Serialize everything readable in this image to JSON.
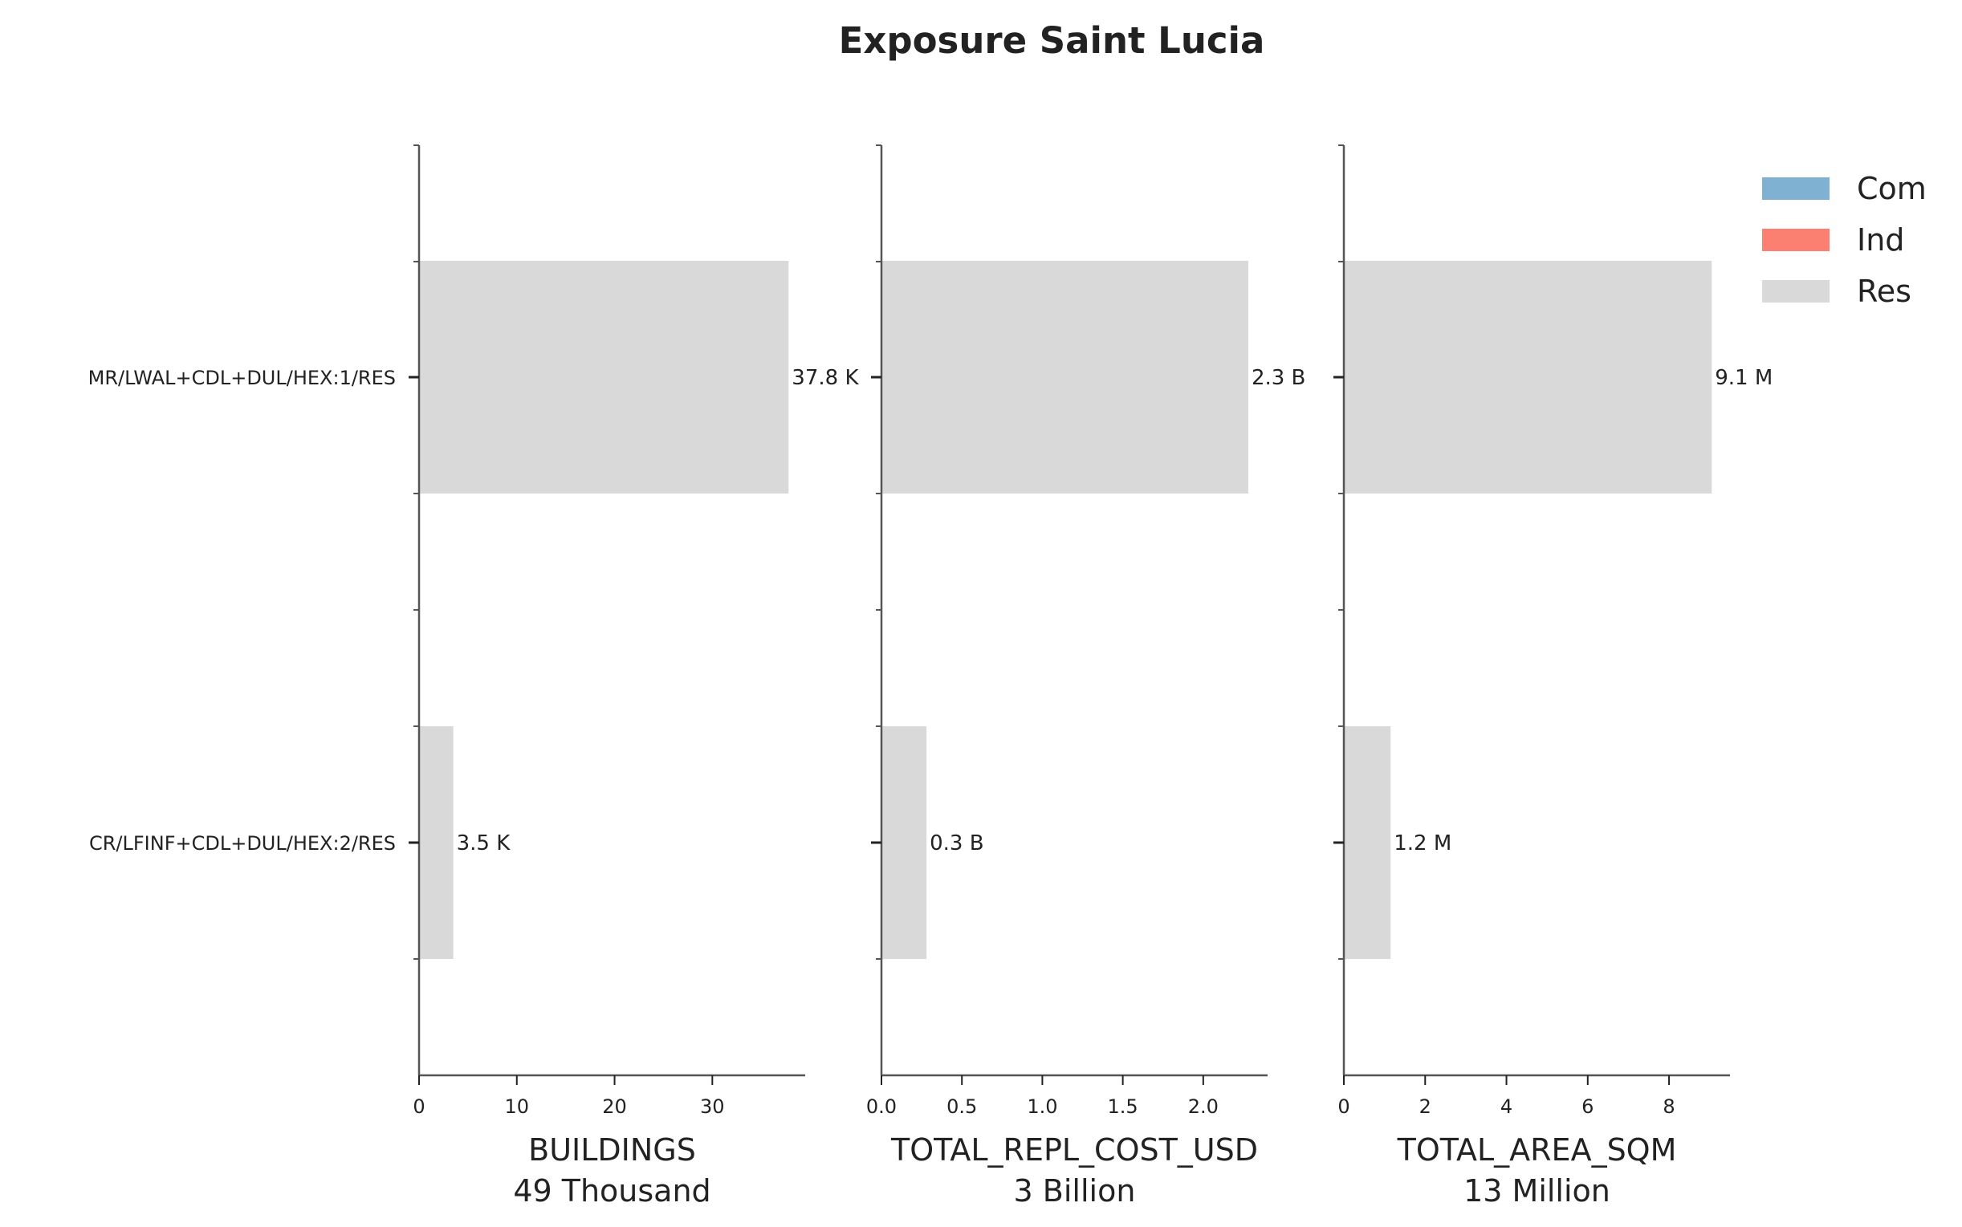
{
  "chart_data": {
    "type": "bar",
    "orientation": "horizontal",
    "title": "Exposure Saint Lucia",
    "categories": [
      "MR/LWAL+CDL+DUL/HEX:1/RES",
      "CR/LFINF+CDL+DUL/HEX:2/RES"
    ],
    "legend": {
      "placement": "top-right",
      "items": [
        {
          "label": "Com",
          "color": "#7fb1d3"
        },
        {
          "label": "Ind",
          "color": "#fb8072"
        },
        {
          "label": "Res",
          "color": "#d9d9d9"
        }
      ]
    },
    "bar_color": "#d9d9d9",
    "panels": [
      {
        "xlabel": "BUILDINGS",
        "total_label": "49 Thousand",
        "values": [
          37.8,
          3.5
        ],
        "value_labels": [
          "37.8 K",
          "3.5 K"
        ],
        "xlim": [
          0,
          39.5
        ],
        "ticks": [
          0,
          10,
          20,
          30
        ],
        "tick_labels": [
          "0",
          "10",
          "20",
          "30"
        ]
      },
      {
        "xlabel": "TOTAL_REPL_COST_USD",
        "total_label": "3 Billion",
        "values": [
          2.28,
          0.28
        ],
        "value_labels": [
          "2.3 B",
          "0.3 B"
        ],
        "xlim": [
          0,
          2.4
        ],
        "ticks": [
          0.0,
          0.5,
          1.0,
          1.5,
          2.0
        ],
        "tick_labels": [
          "0.0",
          "0.5",
          "1.0",
          "1.5",
          "2.0"
        ]
      },
      {
        "xlabel": "TOTAL_AREA_SQM",
        "total_label": "13 Million",
        "values": [
          9.05,
          1.15
        ],
        "value_labels": [
          "9.1 M",
          "1.2 M"
        ],
        "xlim": [
          0,
          9.5
        ],
        "ticks": [
          0,
          2,
          4,
          6,
          8
        ],
        "tick_labels": [
          "0",
          "2",
          "4",
          "6",
          "8"
        ]
      }
    ],
    "grid": false
  }
}
